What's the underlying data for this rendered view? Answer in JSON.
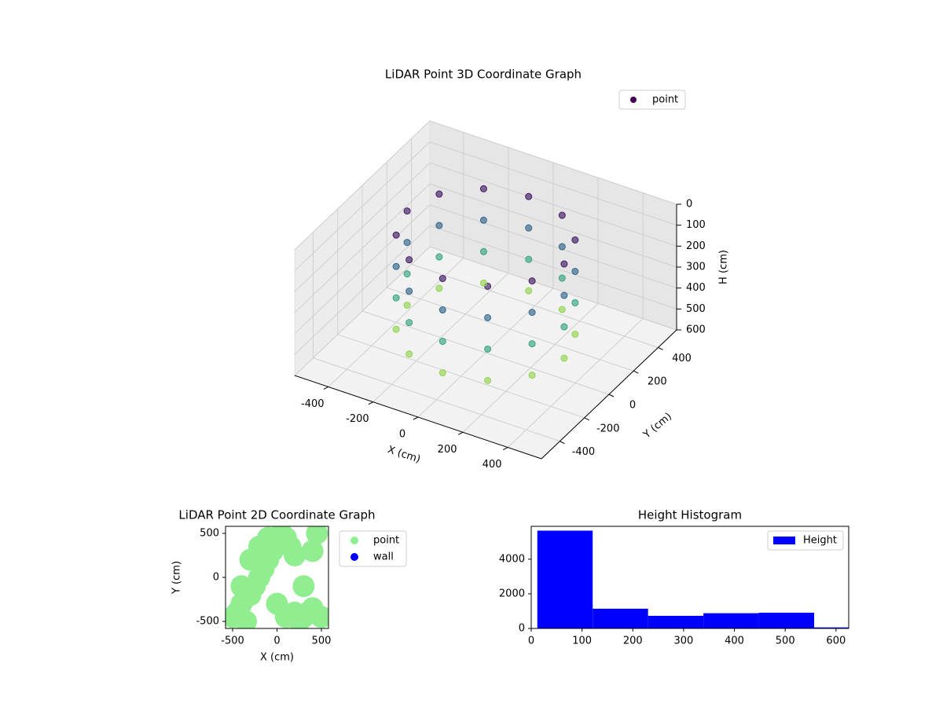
{
  "chart_data": [
    {
      "type": "scatter3d",
      "title": "LiDAR Point 3D Coordinate Graph",
      "xlabel": "X (cm)",
      "ylabel": "Y (cm)",
      "zlabel": "H (cm)",
      "xlim": [
        -550,
        550
      ],
      "ylim": [
        -550,
        550
      ],
      "zlim": [
        0,
        600
      ],
      "zinvert": true,
      "xticks": [
        -400,
        -200,
        0,
        200,
        400
      ],
      "yticks": [
        -400,
        -200,
        0,
        200,
        400
      ],
      "zticks": [
        0,
        100,
        200,
        300,
        400,
        500,
        600
      ],
      "colormap": "viridis",
      "grid": true,
      "legend": "upper right",
      "series": [
        {
          "name": "point",
          "color": "#440154",
          "x": [
            -303,
            -350,
            -303,
            -175,
            0,
            175,
            303,
            350,
            303,
            175,
            0,
            -175,
            -303,
            -350,
            -303,
            -175,
            0,
            175,
            303,
            350,
            303,
            175,
            0,
            -175,
            -303,
            -350,
            -303,
            -175,
            0,
            175,
            303,
            350,
            303,
            175,
            0,
            -175,
            -303,
            -350,
            -303,
            -175,
            0,
            175,
            303,
            350,
            303,
            175,
            0,
            -175
          ],
          "y": [
            175,
            0,
            -175,
            -303,
            -350,
            -303,
            -175,
            0,
            175,
            303,
            350,
            303,
            175,
            0,
            -175,
            -303,
            -350,
            -303,
            -175,
            0,
            175,
            303,
            350,
            303,
            175,
            0,
            -175,
            -303,
            -350,
            -303,
            -175,
            0,
            175,
            303,
            350,
            303,
            175,
            0,
            -175,
            -303,
            -350,
            -303,
            -175,
            0,
            175,
            303,
            350,
            303
          ],
          "z": [
            50,
            50,
            50,
            50,
            50,
            50,
            50,
            50,
            50,
            50,
            50,
            50,
            200,
            200,
            200,
            200,
            200,
            200,
            200,
            200,
            200,
            200,
            200,
            200,
            350,
            350,
            350,
            350,
            350,
            350,
            350,
            350,
            350,
            350,
            350,
            350,
            500,
            500,
            500,
            500,
            500,
            500,
            500,
            500,
            500,
            500,
            500,
            500
          ]
        }
      ]
    },
    {
      "type": "scatter",
      "title": "LiDAR Point 2D Coordinate Graph",
      "xlabel": "X (cm)",
      "ylabel": "Y (cm)",
      "xlim": [
        -580,
        580
      ],
      "ylim": [
        -580,
        580
      ],
      "xticks": [
        -500,
        0,
        500
      ],
      "yticks": [
        -500,
        0,
        500
      ],
      "legend": "outside right",
      "series": [
        {
          "name": "point",
          "color": "#90ee90",
          "x": [
            -500,
            -450,
            -400,
            -350,
            -300,
            -250,
            -200,
            -150,
            -100,
            -50,
            0,
            50,
            100,
            150,
            200,
            250,
            300,
            350,
            400,
            450,
            500,
            -300,
            -200,
            -100,
            0,
            100,
            200,
            300,
            -400,
            400
          ],
          "y": [
            -450,
            -400,
            -300,
            -500,
            -200,
            -100,
            0,
            100,
            200,
            300,
            400,
            500,
            450,
            350,
            250,
            -500,
            -450,
            -400,
            -350,
            500,
            -450,
            200,
            350,
            450,
            -300,
            -450,
            -400,
            -100,
            -100,
            300
          ]
        },
        {
          "name": "wall",
          "color": "#0000ff",
          "x": [],
          "y": []
        }
      ]
    },
    {
      "type": "histogram",
      "title": "Height Histogram",
      "bins": [
        12,
        121,
        230,
        339,
        448,
        557,
        666
      ],
      "xlim": [
        0,
        625
      ],
      "ylim": [
        0,
        5900
      ],
      "xticks": [
        0,
        100,
        200,
        300,
        400,
        500,
        600
      ],
      "yticks": [
        0,
        2000,
        4000
      ],
      "legend": "upper right",
      "series": [
        {
          "name": "Height",
          "color": "#0000ff",
          "values": [
            5650,
            1140,
            730,
            880,
            910,
            60
          ]
        }
      ]
    }
  ]
}
